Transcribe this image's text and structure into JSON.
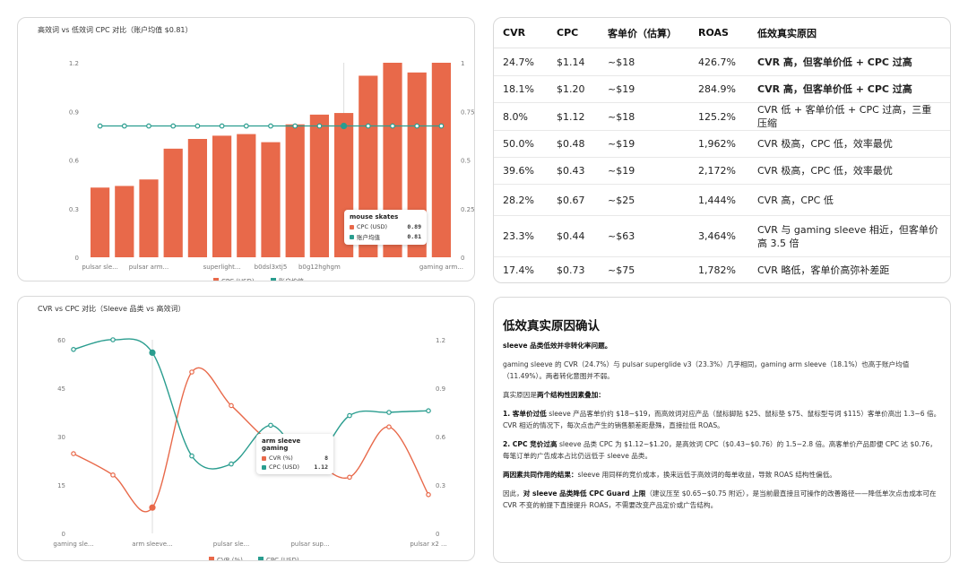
{
  "chart_data": [
    {
      "type": "bar",
      "title": "高效词 vs 低效词 CPC 对比（账户均值 $0.81）",
      "categories": [
        "pulsar sle...",
        "",
        "pulsar arm...",
        "",
        "",
        "superlight...",
        "",
        "b0dsl3xtj5",
        "",
        "b0g12hghgm",
        "",
        "",
        "",
        "",
        "gaming arm..."
      ],
      "series": [
        {
          "name": "CPC (USD)",
          "kind": "bar",
          "axis": "left",
          "color": "#e8694a",
          "values": [
            0.43,
            0.44,
            0.48,
            0.67,
            0.73,
            0.75,
            0.76,
            0.71,
            0.82,
            0.88,
            0.89,
            1.12,
            1.2,
            1.14,
            1.2
          ]
        },
        {
          "name": "账户均值",
          "kind": "line",
          "axis": "left",
          "color": "#2a9d8f",
          "values": [
            0.81,
            0.81,
            0.81,
            0.81,
            0.81,
            0.81,
            0.81,
            0.81,
            0.81,
            0.81,
            0.81,
            0.81,
            0.81,
            0.81,
            0.81
          ]
        }
      ],
      "ylim": [
        0,
        1.2
      ],
      "yticks_left": [
        "0",
        "0.3",
        "0.6",
        "0.9",
        "1.2"
      ],
      "yticks_right": [
        "0",
        "0.25",
        "0.5",
        "0.75",
        "1"
      ],
      "grid": false,
      "legend": "bottom",
      "tooltip": {
        "index": 10,
        "title": "mouse skates",
        "rows": [
          {
            "label": "CPC (USD)",
            "value": "0.89",
            "color": "#e8694a"
          },
          {
            "label": "账户均值",
            "value": "0.81",
            "color": "#2a9d8f"
          }
        ]
      }
    },
    {
      "type": "line",
      "title": "CVR vs CPC 对比（Sleeve 品类 vs 高效词）",
      "categories": [
        "gaming sle...",
        "",
        "arm sleeve...",
        "",
        "pulsar sle...",
        "",
        "pulsar sup...",
        "",
        "",
        "pulsar x2 ..."
      ],
      "series": [
        {
          "name": "CVR (%)",
          "axis": "left",
          "color": "#e8694a",
          "values": [
            24.7,
            18.1,
            8.0,
            50.0,
            39.6,
            28.2,
            23.3,
            17.4,
            33.0,
            12.0
          ]
        },
        {
          "name": "CPC (USD)",
          "axis": "right",
          "color": "#2a9d8f",
          "values": [
            1.14,
            1.2,
            1.12,
            0.48,
            0.43,
            0.67,
            0.44,
            0.73,
            0.75,
            0.76
          ]
        }
      ],
      "ylim_left": [
        0,
        60
      ],
      "ylim_right": [
        0,
        1.2
      ],
      "yticks_left": [
        "0",
        "15",
        "30",
        "45",
        "60"
      ],
      "yticks_right": [
        "0",
        "0.3",
        "0.6",
        "0.9",
        "1.2"
      ],
      "grid": false,
      "legend": "bottom",
      "tooltip": {
        "index": 2,
        "title": "arm sleeve gaming",
        "rows": [
          {
            "label": "CVR (%)",
            "value": "8",
            "color": "#e8694a"
          },
          {
            "label": "CPC (USD)",
            "value": "1.12",
            "color": "#2a9d8f"
          }
        ]
      }
    }
  ],
  "table": {
    "headers": [
      "CVR",
      "CPC",
      "客单价（估算）",
      "ROAS",
      "低效真实原因"
    ],
    "rows": [
      {
        "cells": [
          "24.7%",
          "$1.14",
          "~$18",
          "426.7%",
          "CVR 高，但客单价低 + CPC 过高"
        ],
        "bold_reason": true
      },
      {
        "cells": [
          "18.1%",
          "$1.20",
          "~$19",
          "284.9%",
          "CVR 高，但客单价低 + CPC 过高"
        ],
        "bold_reason": true
      },
      {
        "cells": [
          "8.0%",
          "$1.12",
          "~$18",
          "125.2%",
          "CVR 低 + 客单价低 + CPC 过高，三重压缩"
        ],
        "bold_reason": false
      },
      {
        "cells": [
          "50.0%",
          "$0.48",
          "~$19",
          "1,962%",
          "CVR 极高，CPC 低，效率最优"
        ],
        "bold_reason": false
      },
      {
        "cells": [
          "39.6%",
          "$0.43",
          "~$19",
          "2,172%",
          "CVR 极高，CPC 低，效率最优"
        ],
        "bold_reason": false
      },
      {
        "cells": [
          "28.2%",
          "$0.67",
          "~$25",
          "1,444%",
          "CVR 高，CPC 低"
        ],
        "bold_reason": false
      },
      {
        "cells": [
          "23.3%",
          "$0.44",
          "~$63",
          "3,464%",
          "CVR 与 gaming sleeve 相近，但客单价高 3.5 倍"
        ],
        "bold_reason": false
      },
      {
        "cells": [
          "17.4%",
          "$0.73",
          "~$75",
          "1,782%",
          "CVR 略低，客单价高弥补差距"
        ],
        "bold_reason": false
      }
    ]
  },
  "note": {
    "title": "低效真实原因确认",
    "p1": "sleeve 品类低效并非转化率问题。",
    "p2": "gaming sleeve 的 CVR（24.7%）与 pulsar superglide v3（23.3%）几乎相同，gaming arm sleeve（18.1%）也高于账户均值（11.49%）。两者转化意图并不弱。",
    "p3_pre": "真实原因是",
    "p3_bold": "两个结构性因素叠加：",
    "p4_bold": "1. 客单价过低",
    "p4": " sleeve 产品客单价约 $18~$19，而高效词对应产品（鼠标脚贴 $25、鼠标垫 $75、鼠标型号词 $115）客单价高出 1.3~6 倍。CVR 相近的情况下，每次点击产生的销售额差距悬殊，直接拉低 ROAS。",
    "p5_bold": "2. CPC 竞价过高",
    "p5": " sleeve 品类 CPC 为 $1.12~$1.20，是高效词 CPC（$0.43~$0.76）的 1.5~2.8 倍。高客单价产品即便 CPC 达 $0.76，每笔订单的广告成本占比仍远低于 sleeve 品类。",
    "p6_bold": "两因素共同作用的结果：",
    "p6": "sleeve 用同样的竞价成本，换来远低于高效词的每单收益，导致 ROAS 结构性偏低。",
    "p7_pre": "因此，",
    "p7_bold": "对 sleeve 品类降低 CPC Guard 上限",
    "p7": "（建议压至 $0.65~$0.75 附近），是当前最直接且可操作的改善路径——降低单次点击成本可在 CVR 不变的前提下直接提升 ROAS，不需要改变产品定价或广告结构。"
  }
}
